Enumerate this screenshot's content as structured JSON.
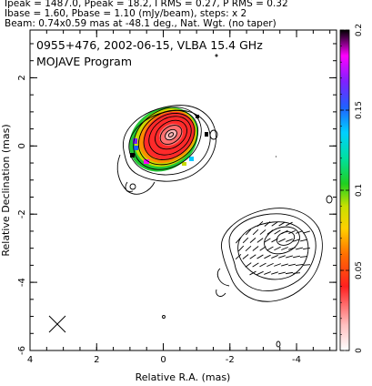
{
  "header": {
    "line1": "Ipeak = 1487.0, Ppeak = 18.2, I RMS = 0.27, P RMS = 0.32",
    "line2": "Ibase = 1.60, Pbase = 1.10 (mJy/beam), steps: x 2",
    "line3": "Beam: 0.74x0.59 mas at -48.1 deg., Nat. Wgt. (no taper)"
  },
  "plot": {
    "title": "0955+476, 2002-06-15, VLBA 15.4 GHz",
    "subtitle": "MOJAVE Program",
    "xlabel": "Relative R.A. (mas)",
    "ylabel": "Relative Declination (mas)",
    "x_ticks": [
      "4",
      "2",
      "0",
      "-2",
      "-4"
    ],
    "y_ticks": [
      "2",
      "0",
      "-2",
      "-4",
      "-6"
    ],
    "xlim": [
      4,
      -5.2
    ],
    "ylim": [
      -6,
      3.4
    ]
  },
  "colorbar": {
    "ticks": [
      "0",
      "0.05",
      "0.1",
      "0.15",
      "0.2"
    ],
    "range": [
      0,
      0.2
    ]
  }
}
